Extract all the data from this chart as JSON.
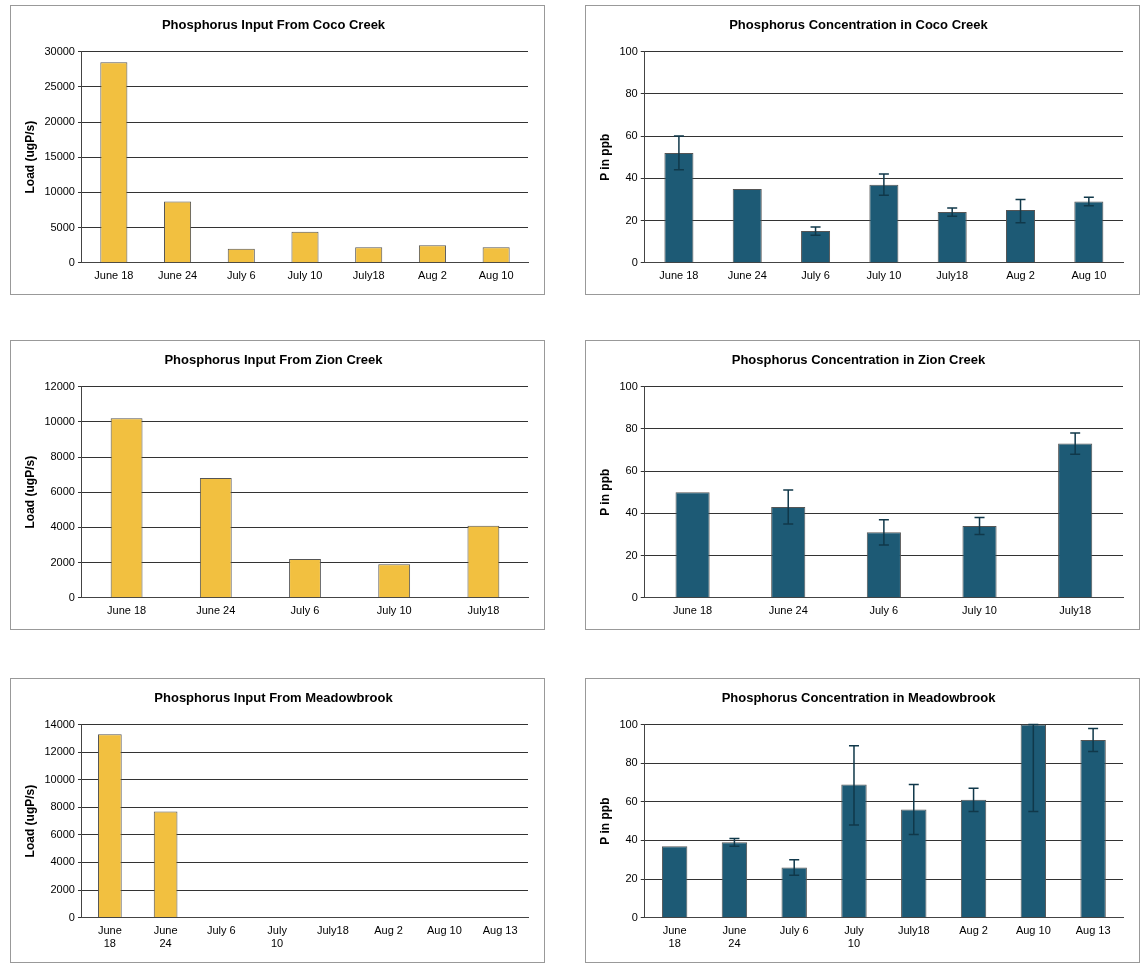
{
  "chart_data": [
    {
      "type": "bar",
      "title": "Phosphorus Input From Coco Creek",
      "ylabel": "Load (ugP/s)",
      "categories": [
        "June 18",
        "June 24",
        "July 6",
        "July 10",
        "July18",
        "Aug 2",
        "Aug 10"
      ],
      "values": [
        28500,
        8700,
        2000,
        4400,
        2200,
        2500,
        2200
      ],
      "color": "#f2c040",
      "ylim": [
        0,
        30000
      ],
      "yticks": [
        0,
        5000,
        10000,
        15000,
        20000,
        25000,
        30000
      ],
      "grid": "y",
      "legend": false
    },
    {
      "type": "bar",
      "title": "Phosphorus Concentration in Coco Creek",
      "ylabel": "P in ppb",
      "categories": [
        "June 18",
        "June 24",
        "July 6",
        "July 10",
        "July18",
        "Aug 2",
        "Aug 10"
      ],
      "values": [
        52,
        35,
        15,
        37,
        24,
        25,
        29
      ],
      "errors": [
        [
          44,
          60
        ],
        null,
        [
          13,
          17
        ],
        [
          32,
          42
        ],
        [
          22,
          26
        ],
        [
          19,
          30
        ],
        [
          27,
          31
        ]
      ],
      "color": "#1d5a75",
      "ylim": [
        0,
        100
      ],
      "yticks": [
        0,
        20,
        40,
        60,
        80,
        100
      ],
      "grid": "y",
      "legend": false
    },
    {
      "type": "bar",
      "title": "Phosphorus Input From Zion Creek",
      "ylabel": "Load (ugP/s)",
      "categories": [
        "June 18",
        "June 24",
        "July 6",
        "July 10",
        "July18"
      ],
      "values": [
        10200,
        6800,
        2200,
        1900,
        4100
      ],
      "color": "#f2c040",
      "ylim": [
        0,
        12000
      ],
      "yticks": [
        0,
        2000,
        4000,
        6000,
        8000,
        10000,
        12000
      ],
      "grid": "y",
      "legend": false
    },
    {
      "type": "bar",
      "title": "Phosphorus Concentration in Zion Creek",
      "ylabel": "P in ppb",
      "categories": [
        "June 18",
        "June 24",
        "July 6",
        "July 10",
        "July18"
      ],
      "values": [
        50,
        43,
        31,
        34,
        73
      ],
      "errors": [
        null,
        [
          35,
          51
        ],
        [
          25,
          37
        ],
        [
          30,
          38
        ],
        [
          68,
          78
        ]
      ],
      "color": "#1d5a75",
      "ylim": [
        0,
        100
      ],
      "yticks": [
        0,
        20,
        40,
        60,
        80,
        100
      ],
      "grid": "y",
      "legend": false
    },
    {
      "type": "bar",
      "title": "Phosphorus Input From Meadowbrook",
      "ylabel": "Load (ugP/s)",
      "categories": [
        "June 18",
        "June 24",
        "July 6",
        "July 10",
        "July18",
        "Aug 2",
        "Aug 10",
        "Aug 13"
      ],
      "values": [
        13300,
        7700,
        null,
        null,
        null,
        null,
        null,
        null
      ],
      "color": "#f2c040",
      "ylim": [
        0,
        14000
      ],
      "yticks": [
        0,
        2000,
        4000,
        6000,
        8000,
        10000,
        12000,
        14000
      ],
      "grid": "y",
      "legend": false
    },
    {
      "type": "bar",
      "title": "Phosphorus Concentration in Meadowbrook",
      "ylabel": "P in ppb",
      "categories": [
        "June 18",
        "June 24",
        "July 6",
        "July 10",
        "July18",
        "Aug 2",
        "Aug 10",
        "Aug 13"
      ],
      "values": [
        37,
        39,
        26,
        69,
        56,
        61,
        100,
        92
      ],
      "errors": [
        null,
        [
          37,
          41
        ],
        [
          22,
          30
        ],
        [
          48,
          89
        ],
        [
          43,
          69
        ],
        [
          55,
          67
        ],
        [
          55,
          100
        ],
        [
          86,
          98
        ]
      ],
      "color": "#1d5a75",
      "ylim": [
        0,
        100
      ],
      "yticks": [
        0,
        20,
        40,
        60,
        80,
        100
      ],
      "grid": "y",
      "legend": false
    }
  ]
}
